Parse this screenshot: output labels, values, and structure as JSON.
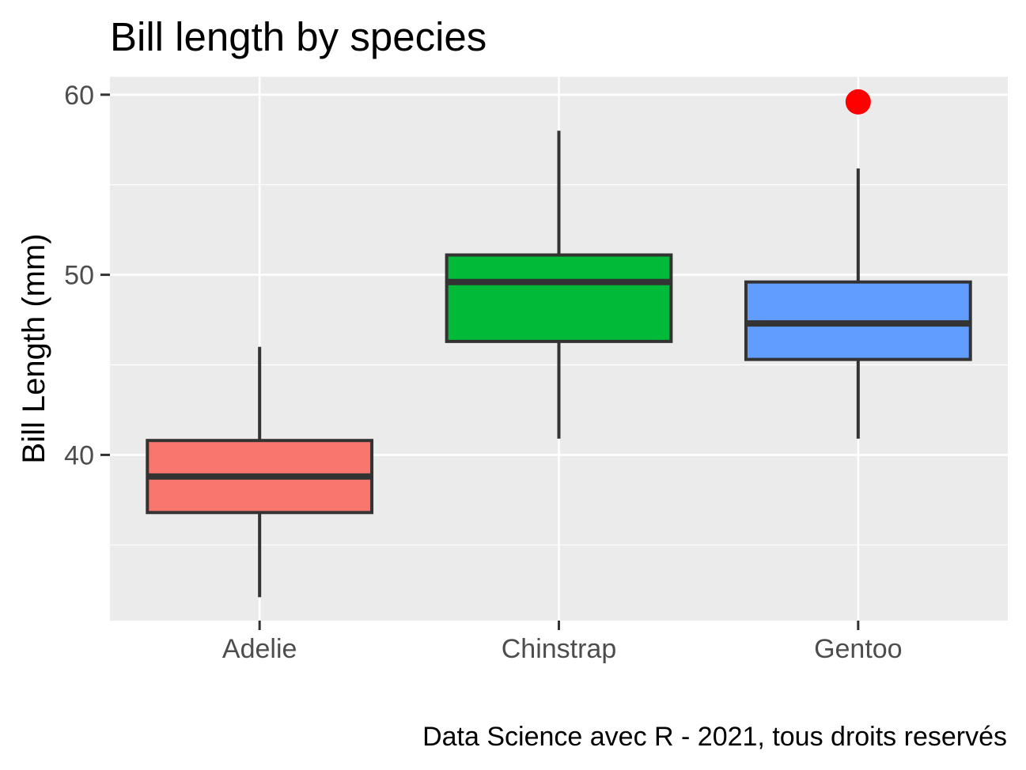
{
  "chart_data": {
    "type": "boxplot",
    "title": "Bill length by species",
    "xlabel": "",
    "ylabel": "Bill Length (mm)",
    "caption": "Data Science avec R - 2021, tous droits reservés",
    "categories": [
      "Adelie",
      "Chinstrap",
      "Gentoo"
    ],
    "ylim": [
      30.8,
      61.0
    ],
    "yticks": [
      40,
      50,
      60
    ],
    "yticks_minor": [
      35,
      45,
      55
    ],
    "grid": true,
    "legend": "none",
    "boxes": [
      {
        "category": "Adelie",
        "min": 32.1,
        "q1": 36.8,
        "median": 38.8,
        "q3": 40.8,
        "max": 46.0,
        "fill": "#F8766D",
        "outliers": []
      },
      {
        "category": "Chinstrap",
        "min": 40.9,
        "q1": 46.3,
        "median": 49.6,
        "q3": 51.1,
        "max": 58.0,
        "fill": "#00BA38",
        "outliers": []
      },
      {
        "category": "Gentoo",
        "min": 40.9,
        "q1": 45.3,
        "median": 47.3,
        "q3": 49.6,
        "max": 55.9,
        "fill": "#619CFF",
        "outliers": [
          59.6
        ]
      }
    ],
    "outlier_color": "#FF0000",
    "panel_color": "#EBEBEB",
    "box_line_color": "#333333"
  }
}
